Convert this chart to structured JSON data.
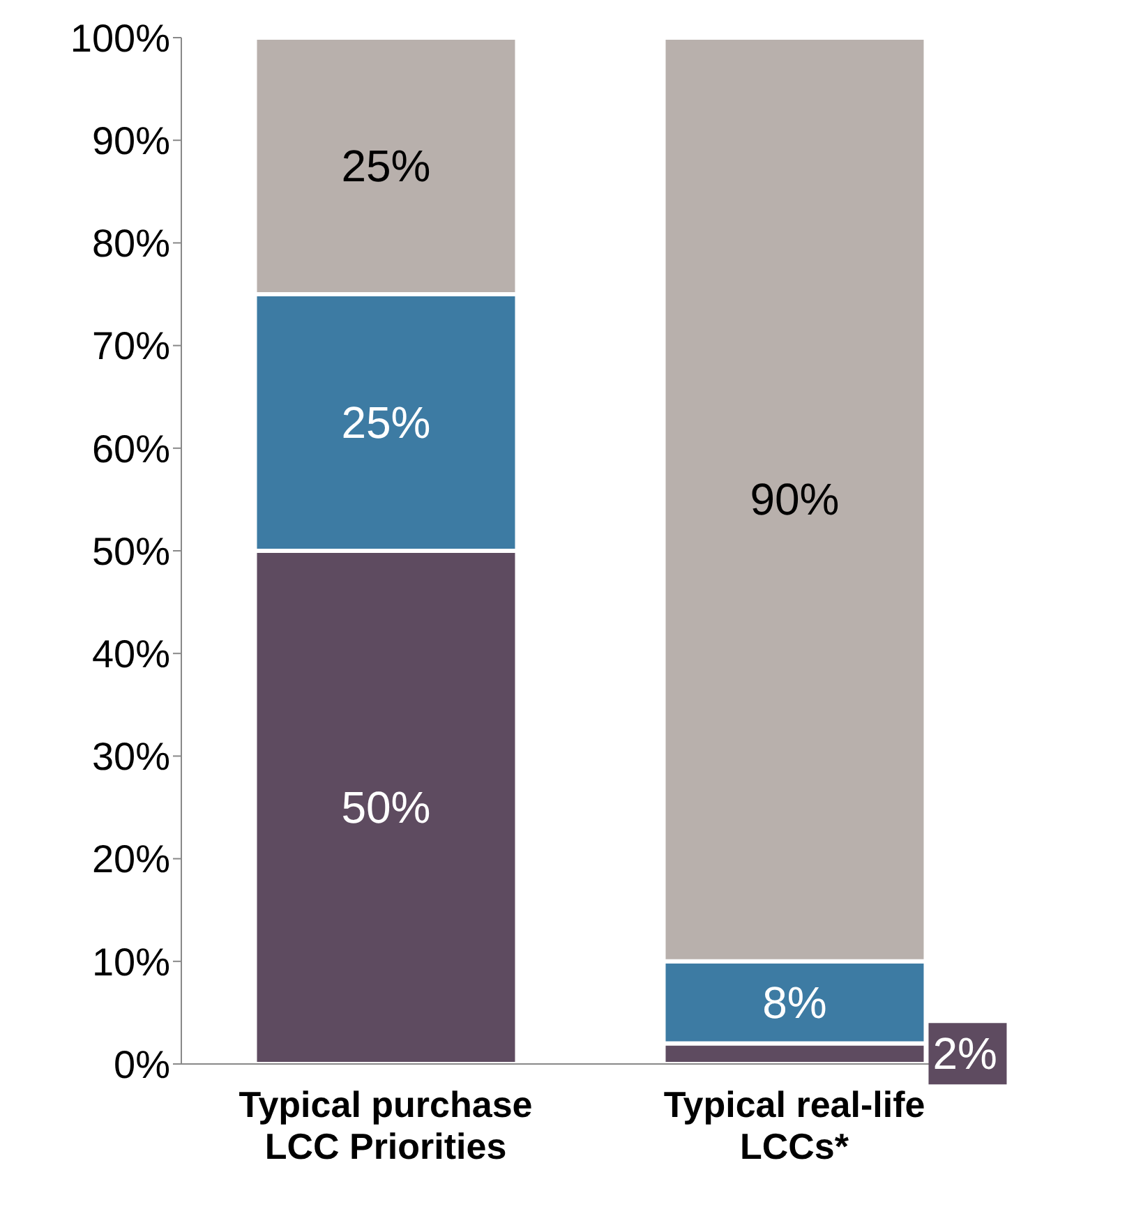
{
  "chart_data": {
    "type": "bar",
    "stacked": true,
    "categories": [
      "Typical purchase\nLCC Priorities",
      "Typical real-life\nLCCs*"
    ],
    "series": [
      {
        "color": "#5e4b60",
        "values": [
          50,
          2
        ],
        "value_labels": [
          "50%",
          "2%"
        ]
      },
      {
        "color": "#3d7ba3",
        "values": [
          25,
          8
        ],
        "value_labels": [
          "25%",
          "8%"
        ]
      },
      {
        "color": "#b8b0ac",
        "values": [
          25,
          90
        ],
        "value_labels": [
          "25%",
          "90%"
        ]
      }
    ],
    "ylim": [
      0,
      100
    ],
    "yticks": [
      {
        "value": 0,
        "label": "0%"
      },
      {
        "value": 10,
        "label": "10%"
      },
      {
        "value": 20,
        "label": "20%"
      },
      {
        "value": 30,
        "label": "30%"
      },
      {
        "value": 40,
        "label": "40%"
      },
      {
        "value": 50,
        "label": "50%"
      },
      {
        "value": 60,
        "label": "60%"
      },
      {
        "value": 70,
        "label": "70%"
      },
      {
        "value": 80,
        "label": "80%"
      },
      {
        "value": 90,
        "label": "90%"
      },
      {
        "value": 100,
        "label": "100%"
      }
    ],
    "grid": false,
    "legend": false
  }
}
